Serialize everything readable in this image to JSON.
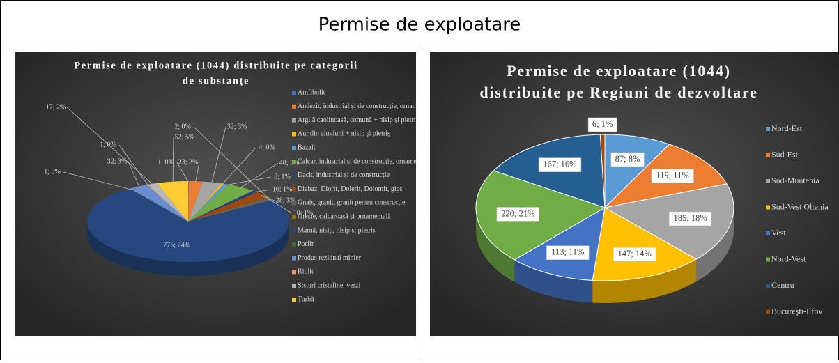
{
  "title": "Permise de exploatare",
  "chart_data": [
    {
      "type": "pie",
      "title": "Permise de exploatare (1044) distribuite pe categorii de substanțe",
      "title_lines": [
        "Permise de exploatare (1044) distribuite pe categorii",
        "de substanțe"
      ],
      "categories": [
        "Amfibolit",
        "Andezit, industrial și de construcție, ornamental",
        "Argilă caolinoasă, comună + nisip și pietriș",
        "Aur din aluviuni + nisip și pietriș",
        "Bazalt",
        "Calcar, industrial și de construcție, ornamental",
        "Dacit, industrial și de construcție",
        "Diabaz, Diorit, Dolerit, Dolomit, gips",
        "Gnais, granit, granit pentru construcție",
        "Gresie, calcaroasă și ornamentală",
        "Marnă, nisip, nisip și pietriș",
        "Porfir",
        "Produs rezidual minier",
        "Riolit",
        "Șisturi cristaline, verzi",
        "Turbă"
      ],
      "values": [
        1,
        23,
        32,
        4,
        8,
        48,
        10,
        28,
        10,
        2,
        775,
        1,
        32,
        1,
        17,
        52
      ],
      "value_labels": [
        "1; 0%",
        "23; 2%",
        "32; 3%",
        "4; 0%",
        "8; 1%",
        "48; 5%",
        "10; 1%",
        "28; 3%",
        "10; 1%",
        "2; 0%",
        "775; 74%",
        "1; 0%",
        "32; 3%",
        "1; 0%",
        "17; 2%",
        "52; 5%"
      ],
      "colors": [
        "#4472c4",
        "#ed7d31",
        "#a5a5a5",
        "#ffc000",
        "#5b9bd5",
        "#70ad47",
        "#264478",
        "#9e480e",
        "#636363",
        "#997300",
        "#27487e",
        "#43682b",
        "#698ed0",
        "#f1975a",
        "#b7b7b7",
        "#ffcd33"
      ],
      "legend": "right"
    },
    {
      "type": "pie",
      "title": "Permise de exploatare (1044) distribuite pe Regiuni de dezvoltare",
      "title_lines": [
        "Permise de exploatare (1044)",
        "distribuite pe Regiuni de dezvoltare"
      ],
      "categories": [
        "Nord-Est",
        "Sud-Est",
        "Sud-Muntenia",
        "Sud-Vest Oltenia",
        "Vest",
        "Nord-Vest",
        "Centru",
        "Bucureşti-Ilfov"
      ],
      "values": [
        87,
        119,
        185,
        147,
        113,
        220,
        167,
        6
      ],
      "value_labels": [
        "87; 8%",
        "119; 11%",
        "185; 18%",
        "147; 14%",
        "113; 11%",
        "220; 21%",
        "167; 16%",
        "6; 1%"
      ],
      "colors": [
        "#5b9bd5",
        "#ed7d31",
        "#a5a5a5",
        "#ffc000",
        "#4472c4",
        "#70ad47",
        "#255e91",
        "#9e480e"
      ],
      "legend": "right"
    }
  ]
}
